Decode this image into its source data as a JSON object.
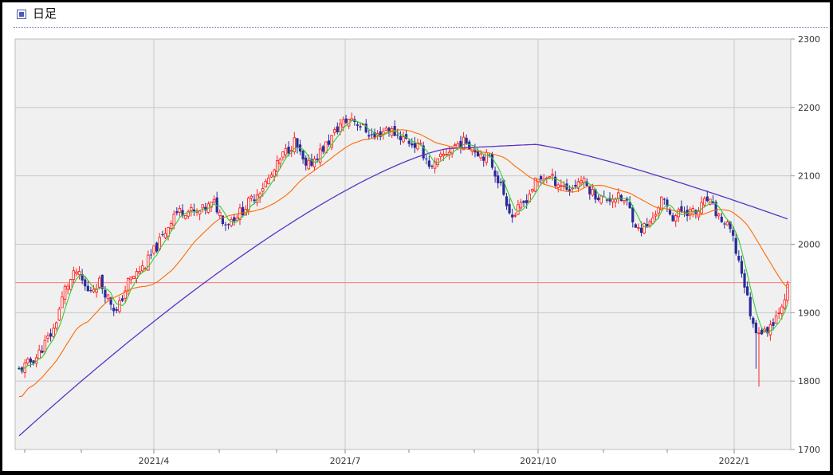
{
  "header": {
    "title": "日足"
  },
  "chart_data": {
    "type": "candlestick",
    "ylim": [
      1700,
      2300
    ],
    "y_ticks": [
      "2300",
      "2200",
      "2100",
      "2000",
      "1900",
      "1800",
      "1700"
    ],
    "x_ticks": [
      "2021/4",
      "2021/7",
      "2021/10",
      "2022/1"
    ],
    "grid": true,
    "reference_line": 1944,
    "colors": {
      "up": "#ff2020",
      "down": "#2a2a9a",
      "ma_short": "#33cc33",
      "ma_mid": "#ff6a00",
      "ma_long": "#5a32c8",
      "reference": "#ff7a7a",
      "plot_bg": "#f0f0f0",
      "grid": "#c8c8c8"
    }
  }
}
